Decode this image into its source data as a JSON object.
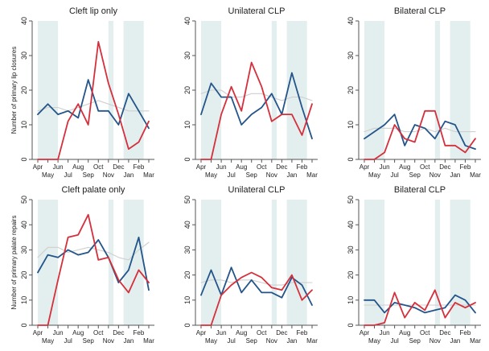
{
  "figure": {
    "colors": {
      "red": "#d62f3c",
      "blue": "#23558a",
      "grey": "#cfcfcf",
      "shade": "#e3efee",
      "axis": "#555555"
    },
    "x_tick_labels_top": [
      "Apr",
      "Jun",
      "Aug",
      "Oct",
      "Dec",
      "Feb"
    ],
    "x_tick_labels_bottom": [
      "May",
      "Jul",
      "Sep",
      "Nov",
      "Jan",
      "Mar"
    ]
  },
  "chart_data": [
    {
      "type": "line",
      "title": "Cleft lip only",
      "ylabel": "Number of primary lip closures",
      "ylim": [
        0,
        40
      ],
      "yticks": [
        0,
        10,
        20,
        30,
        40
      ],
      "x": [
        "Apr",
        "May",
        "Jun",
        "Jul",
        "Aug",
        "Sep",
        "Oct",
        "Nov",
        "Dec",
        "Jan",
        "Feb",
        "Mar"
      ],
      "shaded_x_ranges": [
        [
          0,
          2
        ],
        [
          7,
          7.5
        ],
        [
          8.5,
          10.5
        ]
      ],
      "series": [
        {
          "color": "red",
          "values": [
            0,
            0,
            0,
            11,
            16,
            10,
            34,
            22,
            13,
            3,
            5,
            11
          ]
        },
        {
          "color": "blue",
          "values": [
            13,
            16,
            13,
            14,
            12,
            23,
            14,
            14,
            10,
            19,
            14,
            9
          ]
        },
        {
          "color": "grey",
          "values": [
            14,
            15,
            15,
            14,
            15,
            16,
            17,
            16,
            15,
            14,
            14,
            14
          ]
        }
      ]
    },
    {
      "type": "line",
      "title": "Unilateral CLP",
      "ylim": [
        0,
        40
      ],
      "yticks": [
        0,
        10,
        20,
        30,
        40
      ],
      "x": [
        "Apr",
        "May",
        "Jun",
        "Jul",
        "Aug",
        "Sep",
        "Oct",
        "Nov",
        "Dec",
        "Jan",
        "Feb",
        "Mar"
      ],
      "shaded_x_ranges": [
        [
          0,
          2
        ],
        [
          7,
          7.5
        ],
        [
          8.5,
          10.5
        ]
      ],
      "series": [
        {
          "color": "red",
          "values": [
            0,
            0,
            13,
            21,
            14,
            28,
            21,
            11,
            13,
            13,
            7,
            16
          ]
        },
        {
          "color": "blue",
          "values": [
            13,
            22,
            18,
            18,
            10,
            13,
            15,
            19,
            13,
            25,
            15,
            6
          ]
        },
        {
          "color": "grey",
          "values": [
            19,
            20,
            20,
            18,
            18,
            19,
            19,
            18,
            17,
            18,
            18,
            17
          ]
        }
      ]
    },
    {
      "type": "line",
      "title": "Bilateral CLP",
      "ylim": [
        0,
        40
      ],
      "yticks": [
        0,
        10,
        20,
        30,
        40
      ],
      "x": [
        "Apr",
        "May",
        "Jun",
        "Jul",
        "Aug",
        "Sep",
        "Oct",
        "Nov",
        "Dec",
        "Jan",
        "Feb",
        "Mar"
      ],
      "shaded_x_ranges": [
        [
          0,
          2
        ],
        [
          7,
          7.5
        ],
        [
          8.5,
          10.5
        ]
      ],
      "series": [
        {
          "color": "red",
          "values": [
            0,
            0,
            2,
            10,
            6,
            5,
            14,
            14,
            4,
            4,
            2,
            6
          ]
        },
        {
          "color": "blue",
          "values": [
            6,
            8,
            10,
            13,
            4,
            10,
            9,
            6,
            11,
            10,
            4,
            3
          ]
        },
        {
          "color": "grey",
          "values": [
            8,
            9,
            9,
            9,
            8,
            8,
            9,
            8,
            9,
            8,
            8,
            8
          ]
        }
      ]
    },
    {
      "type": "line",
      "title": "Cleft palate only",
      "ylabel": "Number of primary palate repairs",
      "ylim": [
        0,
        50
      ],
      "yticks": [
        0,
        10,
        20,
        30,
        40,
        50
      ],
      "x": [
        "Apr",
        "May",
        "Jun",
        "Jul",
        "Aug",
        "Sep",
        "Oct",
        "Nov",
        "Dec",
        "Jan",
        "Feb",
        "Mar"
      ],
      "shaded_x_ranges": [
        [
          0,
          2
        ],
        [
          7,
          7.5
        ],
        [
          8.5,
          10.5
        ]
      ],
      "series": [
        {
          "color": "red",
          "values": [
            0,
            0,
            18,
            35,
            36,
            44,
            26,
            27,
            18,
            13,
            22,
            17
          ]
        },
        {
          "color": "blue",
          "values": [
            21,
            28,
            27,
            30,
            28,
            29,
            34,
            27,
            17,
            22,
            35,
            14
          ]
        },
        {
          "color": "grey",
          "values": [
            27,
            31,
            31,
            29,
            30,
            31,
            30,
            29,
            27,
            26,
            30,
            33
          ]
        }
      ]
    },
    {
      "type": "line",
      "title": "Unilateral CLP",
      "ylim": [
        0,
        50
      ],
      "yticks": [
        0,
        10,
        20,
        30,
        40,
        50
      ],
      "x": [
        "Apr",
        "May",
        "Jun",
        "Jul",
        "Aug",
        "Sep",
        "Oct",
        "Nov",
        "Dec",
        "Jan",
        "Feb",
        "Mar"
      ],
      "shaded_x_ranges": [
        [
          0,
          2
        ],
        [
          7,
          7.5
        ],
        [
          8.5,
          10.5
        ]
      ],
      "series": [
        {
          "color": "red",
          "values": [
            0,
            0,
            12,
            16,
            19,
            21,
            19,
            15,
            14,
            20,
            10,
            14
          ]
        },
        {
          "color": "blue",
          "values": [
            12,
            22,
            12,
            23,
            13,
            18,
            13,
            13,
            11,
            19,
            16,
            8
          ]
        },
        {
          "color": "grey",
          "values": [
            17,
            18,
            18,
            17,
            18,
            18,
            17,
            16,
            16,
            17,
            17,
            17
          ]
        }
      ]
    },
    {
      "type": "line",
      "title": "Bilateral CLP",
      "ylim": [
        0,
        50
      ],
      "yticks": [
        0,
        10,
        20,
        30,
        40,
        50
      ],
      "x": [
        "Apr",
        "May",
        "Jun",
        "Jul",
        "Aug",
        "Sep",
        "Oct",
        "Nov",
        "Dec",
        "Jan",
        "Feb",
        "Mar"
      ],
      "shaded_x_ranges": [
        [
          0,
          2
        ],
        [
          7,
          7.5
        ],
        [
          8.5,
          10.5
        ]
      ],
      "series": [
        {
          "color": "red",
          "values": [
            0,
            0,
            1,
            13,
            3,
            9,
            6,
            14,
            3,
            9,
            7,
            9
          ]
        },
        {
          "color": "blue",
          "values": [
            10,
            10,
            5,
            9,
            8,
            7,
            5,
            6,
            7,
            12,
            10,
            5
          ]
        },
        {
          "color": "grey",
          "values": [
            8,
            8,
            8,
            8,
            8,
            8,
            8,
            8,
            8,
            8,
            8,
            8
          ]
        }
      ]
    }
  ]
}
